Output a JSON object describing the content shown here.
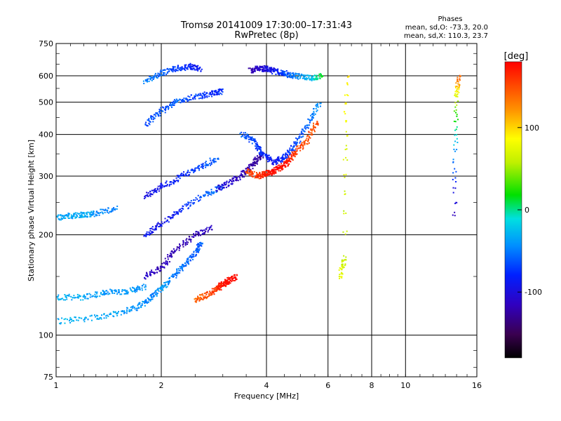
{
  "chart_data": {
    "type": "scatter",
    "title": "Tromsø 20141009 17:30:00–17:31:43",
    "subtitle": "RwPretec (8p)",
    "xlabel": "Frequency [MHz]",
    "ylabel": "Stationary phase Virtual Height [km]",
    "x_scale": "log",
    "y_scale": "log",
    "xlim": [
      1,
      16
    ],
    "ylim": [
      75,
      750
    ],
    "x_ticks": [
      1,
      2,
      4,
      6,
      8,
      10,
      16
    ],
    "y_ticks": [
      75,
      100,
      200,
      300,
      400,
      500,
      600,
      750
    ],
    "grid": true,
    "phase_info": {
      "heading": "Phases",
      "line_o": "mean, sd,O: -73.3, 20.0",
      "line_x": "mean, sd,X: 110.3, 23.7"
    },
    "colorbar": {
      "label": "[deg]",
      "ticks": [
        -100,
        0,
        100
      ],
      "range": [
        -180,
        180
      ],
      "colormap": "rainbow (black-purple-blue-cyan-green-yellow-orange-red)"
    },
    "traces": [
      {
        "freq": [
          1.0,
          1.3,
          1.6,
          1.8,
          1.95
        ],
        "height": [
          110,
          113,
          118,
          125,
          135
        ],
        "phase": [
          -30,
          -35,
          -40,
          -45,
          -50
        ]
      },
      {
        "freq": [
          1.95,
          2.1,
          2.3,
          2.5,
          2.6
        ],
        "height": [
          135,
          145,
          160,
          175,
          190
        ],
        "phase": [
          -40,
          -45,
          -55,
          -60,
          -60
        ]
      },
      {
        "freq": [
          2.5,
          2.7,
          2.9,
          3.0,
          3.1,
          3.3
        ],
        "height": [
          128,
          132,
          138,
          142,
          145,
          150
        ],
        "phase": [
          140,
          150,
          160,
          170,
          175,
          178
        ]
      },
      {
        "freq": [
          1.8,
          2.0,
          2.2,
          2.5,
          2.8
        ],
        "height": [
          150,
          160,
          180,
          200,
          210
        ],
        "phase": [
          -110,
          -115,
          -120,
          -118,
          -110
        ]
      },
      {
        "freq": [
          1.8,
          2.0,
          2.3,
          2.7,
          3.0
        ],
        "height": [
          200,
          215,
          240,
          265,
          280
        ],
        "phase": [
          -90,
          -95,
          -80,
          -60,
          -50
        ]
      },
      {
        "freq": [
          1.8,
          2.0,
          2.3,
          2.6,
          2.9
        ],
        "height": [
          260,
          280,
          300,
          320,
          340
        ],
        "phase": [
          -100,
          -90,
          -80,
          -70,
          -60
        ]
      },
      {
        "freq": [
          2.9,
          3.2,
          3.5,
          3.7,
          3.9
        ],
        "height": [
          275,
          290,
          310,
          330,
          350
        ],
        "phase": [
          -100,
          -110,
          -120,
          -125,
          -130
        ]
      },
      {
        "freq": [
          3.5,
          3.8,
          4.0,
          4.2,
          4.4,
          4.6,
          4.8,
          5.2,
          5.6
        ],
        "height": [
          310,
          300,
          305,
          310,
          320,
          330,
          350,
          380,
          440
        ],
        "phase": [
          150,
          160,
          170,
          175,
          178,
          170,
          160,
          150,
          150
        ]
      },
      {
        "freq": [
          3.4,
          3.7,
          3.9,
          4.2,
          4.5,
          4.8,
          5.2,
          5.7
        ],
        "height": [
          400,
          380,
          350,
          330,
          340,
          370,
          420,
          500
        ],
        "phase": [
          -60,
          -70,
          -80,
          -90,
          -80,
          -70,
          -60,
          -40
        ]
      },
      {
        "freq": [
          1.8,
          2.0,
          2.2,
          2.5,
          2.8,
          3.0
        ],
        "height": [
          430,
          470,
          500,
          520,
          530,
          540
        ],
        "phase": [
          -70,
          -65,
          -60,
          -70,
          -80,
          -75
        ]
      },
      {
        "freq": [
          1.8,
          2.0,
          2.2,
          2.4,
          2.6
        ],
        "height": [
          580,
          610,
          630,
          640,
          630
        ],
        "phase": [
          -50,
          -60,
          -70,
          -80,
          -90
        ]
      },
      {
        "freq": [
          3.6,
          3.8,
          4.0,
          4.2,
          4.5,
          4.8,
          5.3,
          5.8
        ],
        "height": [
          620,
          630,
          630,
          620,
          610,
          600,
          590,
          600
        ],
        "phase": [
          -120,
          -110,
          -100,
          -90,
          -70,
          -50,
          -30,
          20
        ]
      },
      {
        "freq": [
          1.0,
          1.1,
          1.2,
          1.3,
          1.5
        ],
        "height": [
          225,
          228,
          230,
          232,
          240
        ],
        "phase": [
          -40,
          -35,
          -30,
          -45,
          -50
        ]
      },
      {
        "freq": [
          1.0,
          1.2,
          1.4,
          1.6,
          1.8
        ],
        "height": [
          130,
          130,
          135,
          135,
          140
        ],
        "phase": [
          -30,
          -35,
          -40,
          -40,
          -45
        ]
      },
      {
        "freq": [
          6.5,
          6.7,
          6.8
        ],
        "height": [
          150,
          170,
          630
        ],
        "phase": [
          80,
          60,
          100
        ]
      },
      {
        "freq": [
          13.8,
          14.0,
          14.2
        ],
        "height": [
          230,
          520,
          600
        ],
        "phase": [
          -120,
          70,
          150
        ]
      }
    ]
  }
}
